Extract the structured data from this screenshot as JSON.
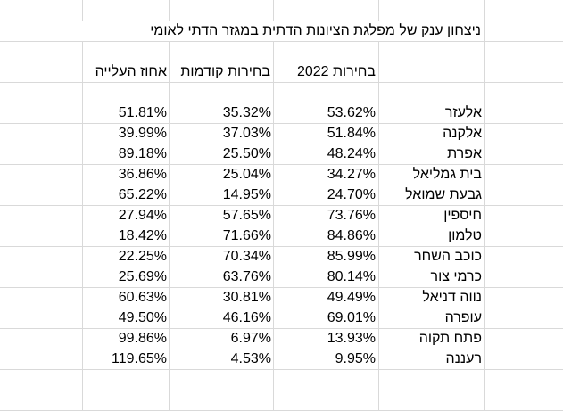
{
  "sheet": {
    "title": "ניצחון ענק של מפלגת הציונות הדתית במגזר הדתי לאומי",
    "headers": [
      "בחירות 2022",
      "בחירות קודמות",
      "אחוז העלייה"
    ],
    "rows": [
      {
        "name": "אלעזר",
        "c2022": "53.62%",
        "prev": "35.32%",
        "rise": "51.81%"
      },
      {
        "name": "אלקנה",
        "c2022": "51.84%",
        "prev": "37.03%",
        "rise": "39.99%"
      },
      {
        "name": "אפרת",
        "c2022": "48.24%",
        "prev": "25.50%",
        "rise": "89.18%"
      },
      {
        "name": "בית גמליאל",
        "c2022": "34.27%",
        "prev": "25.04%",
        "rise": "36.86%"
      },
      {
        "name": "גבעת שמואל",
        "c2022": "24.70%",
        "prev": "14.95%",
        "rise": "65.22%"
      },
      {
        "name": "חיספין",
        "c2022": "73.76%",
        "prev": "57.65%",
        "rise": "27.94%"
      },
      {
        "name": "טלמון",
        "c2022": "84.86%",
        "prev": "71.66%",
        "rise": "18.42%"
      },
      {
        "name": "כוכב השחר",
        "c2022": "85.99%",
        "prev": "70.34%",
        "rise": "22.25%"
      },
      {
        "name": "כרמי צור",
        "c2022": "80.14%",
        "prev": "63.76%",
        "rise": "25.69%"
      },
      {
        "name": "נווה דניאל",
        "c2022": "49.49%",
        "prev": "30.81%",
        "rise": "60.63%"
      },
      {
        "name": "עופרה",
        "c2022": "69.01%",
        "prev": "46.16%",
        "rise": "49.50%"
      },
      {
        "name": "פתח תקוה",
        "c2022": "13.93%",
        "prev": "6.97%",
        "rise": "99.86%"
      },
      {
        "name": "רעננה",
        "c2022": "9.95%",
        "prev": "4.53%",
        "rise": "119.65%"
      }
    ]
  }
}
